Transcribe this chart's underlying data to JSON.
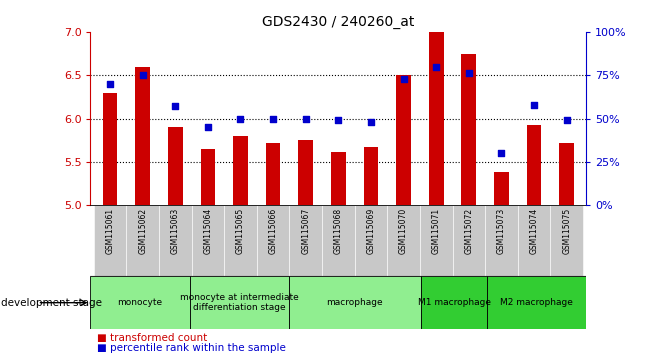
{
  "title": "GDS2430 / 240260_at",
  "samples": [
    "GSM115061",
    "GSM115062",
    "GSM115063",
    "GSM115064",
    "GSM115065",
    "GSM115066",
    "GSM115067",
    "GSM115068",
    "GSM115069",
    "GSM115070",
    "GSM115071",
    "GSM115072",
    "GSM115073",
    "GSM115074",
    "GSM115075"
  ],
  "transformed_count": [
    6.3,
    6.6,
    5.9,
    5.65,
    5.8,
    5.72,
    5.75,
    5.62,
    5.67,
    6.5,
    7.0,
    6.75,
    5.38,
    5.93,
    5.72
  ],
  "percentile_rank": [
    70,
    75,
    57,
    45,
    50,
    50,
    50,
    49,
    48,
    73,
    80,
    76,
    30,
    58,
    49
  ],
  "ylim_left": [
    5.0,
    7.0
  ],
  "ylim_right": [
    0,
    100
  ],
  "yticks_left": [
    5.0,
    5.5,
    6.0,
    6.5,
    7.0
  ],
  "yticks_right": [
    0,
    25,
    50,
    75,
    100
  ],
  "ytick_labels_right": [
    "0%",
    "25%",
    "50%",
    "75%",
    "100%"
  ],
  "hlines": [
    5.5,
    6.0,
    6.5
  ],
  "bar_color": "#CC0000",
  "dot_color": "#0000CC",
  "bar_bottom": 5.0,
  "group_defs": [
    {
      "label": "monocyte",
      "start": 0,
      "end": 3,
      "color": "#90EE90"
    },
    {
      "label": "monocyte at intermediate\ndifferentiation stage",
      "start": 3,
      "end": 6,
      "color": "#90EE90"
    },
    {
      "label": "macrophage",
      "start": 6,
      "end": 10,
      "color": "#90EE90"
    },
    {
      "label": "M1 macrophage",
      "start": 10,
      "end": 12,
      "color": "#32CD32"
    },
    {
      "label": "M2 macrophage",
      "start": 12,
      "end": 15,
      "color": "#32CD32"
    }
  ],
  "legend_tc_label": "transformed count",
  "legend_pr_label": "percentile rank within the sample",
  "legend_tc_color": "#CC0000",
  "legend_pr_color": "#0000CC",
  "dev_stage_label": "development stage",
  "tick_bg_color": "#C8C8C8",
  "spine_color_left": "#CC0000",
  "spine_color_right": "#0000CC"
}
